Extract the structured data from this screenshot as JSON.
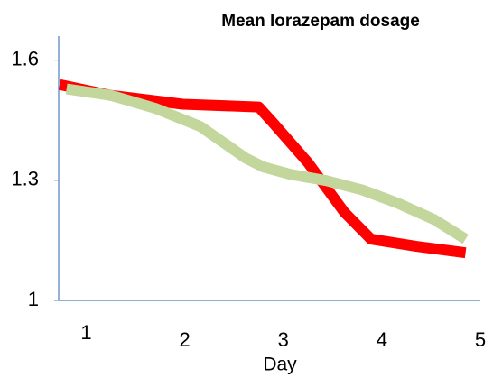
{
  "chart_data": {
    "type": "line",
    "title": "Mean lorazepam dosage",
    "x_label": "Day",
    "xlim": [
      0.72,
      5
    ],
    "xticks": [
      1,
      2,
      3,
      4,
      5
    ],
    "ylim": [
      1,
      1.66
    ],
    "yticks": [
      1,
      1.3,
      1.6
    ],
    "series": [
      {
        "color": "#ff0000",
        "x": [
          0.73,
          1.25,
          1.98,
          2.75,
          2.89,
          3.25,
          3.62,
          3.89,
          4.35,
          4.85
        ],
        "values": [
          1.539,
          1.512,
          1.49,
          1.483,
          1.445,
          1.344,
          1.22,
          1.153,
          1.135,
          1.119
        ]
      },
      {
        "color": "#c3d69b",
        "x": [
          0.8,
          1.25,
          1.71,
          2.16,
          2.62,
          2.8,
          3.07,
          3.44,
          3.8,
          4.16,
          4.53,
          4.85
        ],
        "values": [
          1.528,
          1.512,
          1.479,
          1.434,
          1.355,
          1.333,
          1.315,
          1.299,
          1.276,
          1.243,
          1.202,
          1.153
        ]
      }
    ]
  }
}
